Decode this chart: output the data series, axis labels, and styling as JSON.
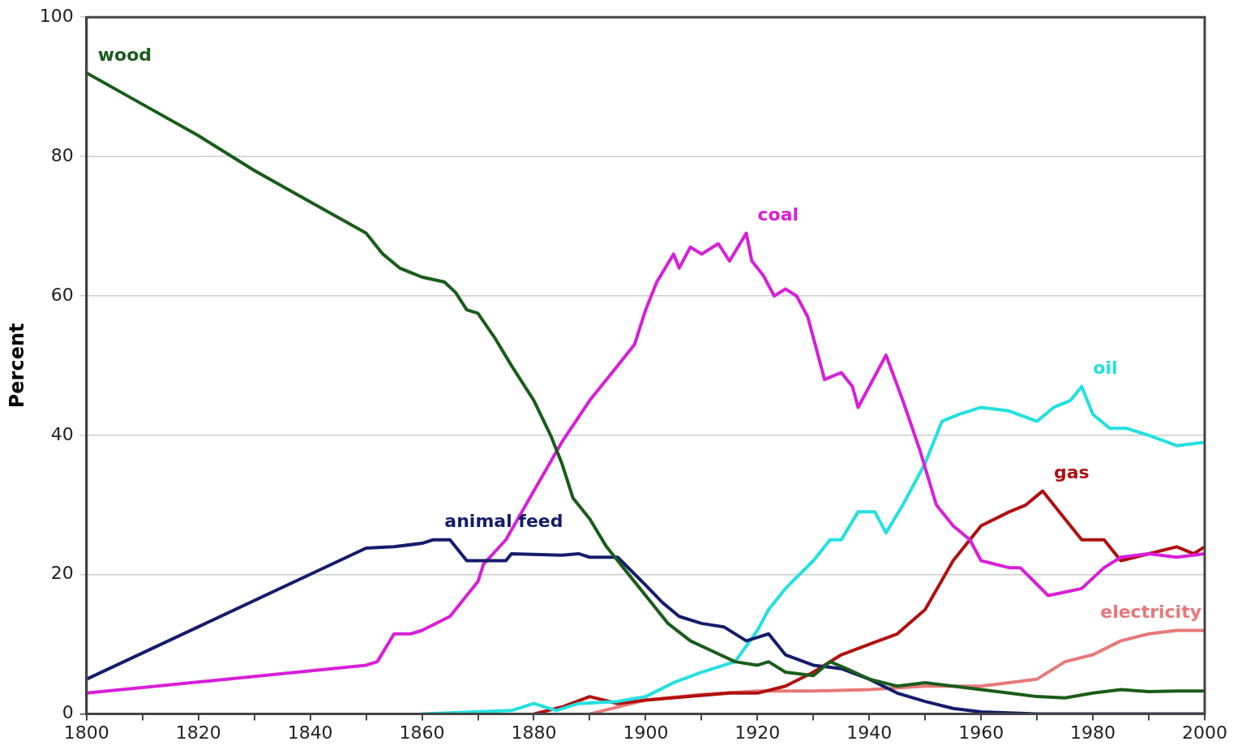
{
  "chart_data": {
    "type": "line",
    "ylabel": "Percent",
    "xlim": [
      1800,
      2000
    ],
    "ylim": [
      0,
      100
    ],
    "xticks": [
      1800,
      {
        "value": 1810,
        "label": null
      },
      1820,
      {
        "value": 1830,
        "label": null
      },
      1840,
      {
        "value": 1850,
        "label": null
      },
      1860,
      {
        "value": 1870,
        "label": null
      },
      1880,
      {
        "value": 1890,
        "label": null
      },
      1900,
      {
        "value": 1910,
        "label": null
      },
      1920,
      {
        "value": 1930,
        "label": null
      },
      1940,
      {
        "value": 1950,
        "label": null
      },
      1960,
      {
        "value": 1970,
        "label": null
      },
      1980,
      {
        "value": 1990,
        "label": null
      },
      2000
    ],
    "yticks": [
      0,
      20,
      40,
      60,
      80,
      100
    ],
    "grid": "y",
    "legend": false,
    "marker": "none",
    "line_style": "solid",
    "series": [
      {
        "name": "wood",
        "color": "#1a5c1a",
        "x": [
          1800,
          1810,
          1820,
          1830,
          1840,
          1850,
          1853,
          1856,
          1860,
          1864,
          1866,
          1868,
          1870,
          1873,
          1876,
          1880,
          1883,
          1885,
          1887,
          1890,
          1893,
          1896,
          1900,
          1904,
          1908,
          1912,
          1916,
          1920,
          1922,
          1925,
          1930,
          1933,
          1936,
          1940,
          1945,
          1950,
          1955,
          1960,
          1965,
          1970,
          1975,
          1980,
          1985,
          1990,
          1995,
          2000
        ],
        "values": [
          92,
          87.5,
          83,
          78,
          73.5,
          69,
          66,
          64,
          62.7,
          62,
          60.5,
          58,
          57.5,
          54,
          50,
          45,
          40,
          36,
          31,
          28,
          24,
          21,
          17,
          13,
          10.5,
          9,
          7.5,
          7,
          7.5,
          6,
          5.5,
          7.5,
          6.5,
          5,
          4,
          4.5,
          4,
          3.5,
          3,
          2.5,
          2.3,
          3,
          3.5,
          3.2,
          3.3,
          3.3
        ]
      },
      {
        "name": "animal feed",
        "color": "#141c6b",
        "x": [
          1800,
          1850,
          1855,
          1860,
          1862,
          1865,
          1868,
          1875,
          1876,
          1885,
          1888,
          1890,
          1895,
          1900,
          1903,
          1906,
          1910,
          1914,
          1918,
          1920,
          1922,
          1925,
          1930,
          1935,
          1940,
          1945,
          1950,
          1955,
          1960,
          1970,
          2000
        ],
        "values": [
          5,
          23.8,
          24,
          24.5,
          25,
          25,
          22,
          22,
          23,
          22.8,
          23,
          22.5,
          22.5,
          18.5,
          16,
          14,
          13,
          12.5,
          10.5,
          11,
          11.5,
          8.5,
          7,
          6.5,
          5,
          3,
          1.8,
          0.8,
          0.3,
          0,
          0
        ]
      },
      {
        "name": "coal",
        "color": "#d81ed8",
        "x": [
          1800,
          1850,
          1852,
          1855,
          1858,
          1860,
          1865,
          1870,
          1871,
          1875,
          1880,
          1885,
          1890,
          1895,
          1898,
          1900,
          1902,
          1905,
          1906,
          1908,
          1910,
          1913,
          1915,
          1918,
          1919,
          1921,
          1923,
          1925,
          1927,
          1929,
          1932,
          1935,
          1937,
          1938,
          1943,
          1946,
          1949,
          1952,
          1955,
          1958,
          1960,
          1965,
          1967,
          1972,
          1975,
          1978,
          1982,
          1985,
          1990,
          1995,
          2000
        ],
        "values": [
          3,
          7,
          7.5,
          11.5,
          11.5,
          12,
          14,
          19,
          21.5,
          25,
          32,
          39,
          45,
          50,
          53,
          58,
          62,
          66,
          64,
          67,
          66,
          67.5,
          65,
          69,
          65,
          63,
          60,
          61,
          60,
          57,
          48,
          49,
          47,
          44,
          51.5,
          45,
          38,
          30,
          27,
          25,
          22,
          21,
          21,
          17,
          17.5,
          18,
          21,
          22.5,
          23,
          22.5,
          23
        ]
      },
      {
        "name": "oil",
        "color": "#22e0e0",
        "x": [
          1860,
          1876,
          1880,
          1884,
          1888,
          1895,
          1900,
          1905,
          1910,
          1916,
          1920,
          1922,
          1925,
          1930,
          1933,
          1935,
          1938,
          1941,
          1943,
          1946,
          1950,
          1953,
          1956,
          1960,
          1965,
          1970,
          1973,
          1976,
          1978,
          1980,
          1983,
          1986,
          1990,
          1995,
          2000
        ],
        "values": [
          0,
          0.5,
          1.5,
          0.5,
          1.5,
          1.8,
          2.5,
          4.5,
          6,
          7.5,
          12,
          15,
          18,
          22,
          25,
          25,
          29,
          29,
          26,
          30,
          36,
          42,
          43,
          44,
          43.5,
          42,
          44,
          45,
          47,
          43,
          41,
          41,
          40,
          38.5,
          39
        ]
      },
      {
        "name": "gas",
        "color": "#b01010",
        "x": [
          1880,
          1885,
          1890,
          1895,
          1900,
          1915,
          1920,
          1925,
          1930,
          1935,
          1940,
          1945,
          1950,
          1955,
          1960,
          1965,
          1968,
          1971,
          1975,
          1978,
          1982,
          1985,
          1990,
          1995,
          1998,
          2000
        ],
        "values": [
          0,
          1,
          2.5,
          1.5,
          2,
          3,
          3,
          4,
          6,
          8.5,
          10,
          11.5,
          15,
          22,
          27,
          29,
          30,
          32,
          28,
          25,
          25,
          22,
          23,
          24,
          23,
          24
        ]
      },
      {
        "name": "electricity",
        "color": "#e87878",
        "x": [
          1890,
          1900,
          1910,
          1920,
          1930,
          1940,
          1950,
          1960,
          1965,
          1970,
          1975,
          1980,
          1985,
          1990,
          1995,
          2000
        ],
        "values": [
          0,
          2,
          2.8,
          3.3,
          3.3,
          3.5,
          4,
          4,
          4.5,
          5,
          7.5,
          8.5,
          10.5,
          11.5,
          12,
          12
        ]
      }
    ]
  }
}
